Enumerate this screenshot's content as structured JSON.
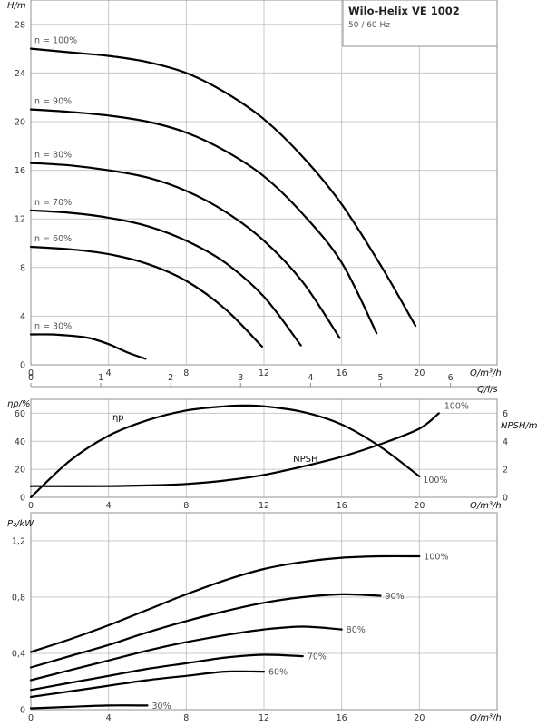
{
  "header": {
    "title": "Wilo-Helix VE 1002",
    "subtitle": "50 / 60 Hz"
  },
  "colors": {
    "curve": "#000000",
    "grid": "#c8c8c8",
    "frame": "#909090"
  },
  "chart_data": [
    {
      "id": "head",
      "type": "line",
      "ylabel": "H/m",
      "xlabel": "Q/m³/h",
      "xlabel2": "Q/l/s",
      "xlim": [
        0,
        24
      ],
      "ylim": [
        0,
        30
      ],
      "xticks": [
        0,
        4,
        8,
        12,
        16,
        20
      ],
      "yticks": [
        0,
        4,
        8,
        12,
        16,
        20,
        24,
        28
      ],
      "xticks2": [
        0,
        1,
        2,
        3,
        4,
        5,
        6
      ],
      "xticks2_unit_factor": 3.6,
      "series": [
        {
          "name": "n = 100%",
          "x": [
            0,
            2,
            4,
            6,
            8,
            10,
            12,
            14,
            16,
            18,
            19.8
          ],
          "y": [
            26.0,
            25.7,
            25.4,
            24.9,
            24.0,
            22.4,
            20.2,
            17.1,
            13.2,
            8.2,
            3.2
          ]
        },
        {
          "name": "n = 90%",
          "x": [
            0,
            2,
            4,
            6,
            8,
            10,
            12,
            14,
            16,
            17.8
          ],
          "y": [
            21.0,
            20.8,
            20.5,
            20.0,
            19.1,
            17.6,
            15.5,
            12.4,
            8.4,
            2.6
          ]
        },
        {
          "name": "n = 80%",
          "x": [
            0,
            2,
            4,
            6,
            8,
            10,
            12,
            14,
            15.9
          ],
          "y": [
            16.6,
            16.4,
            16.0,
            15.4,
            14.3,
            12.6,
            10.2,
            6.8,
            2.2
          ]
        },
        {
          "name": "n = 70%",
          "x": [
            0,
            2,
            4,
            6,
            8,
            10,
            12,
            13.9
          ],
          "y": [
            12.7,
            12.5,
            12.1,
            11.4,
            10.2,
            8.4,
            5.6,
            1.6
          ]
        },
        {
          "name": "n = 60%",
          "x": [
            0,
            2,
            4,
            6,
            8,
            10,
            11.9
          ],
          "y": [
            9.7,
            9.5,
            9.1,
            8.3,
            6.9,
            4.6,
            1.5
          ]
        },
        {
          "name": "n = 30%",
          "x": [
            0,
            1,
            2,
            3,
            4,
            5,
            5.9
          ],
          "y": [
            2.5,
            2.5,
            2.4,
            2.2,
            1.7,
            1.0,
            0.5
          ]
        }
      ]
    },
    {
      "id": "efficiency-npsh",
      "type": "line",
      "ylabel": "ηp/%",
      "ylabel_right": "NPSH/m",
      "xlabel": "Q/m³/h",
      "xlim": [
        0,
        24
      ],
      "ylim": [
        0,
        70
      ],
      "ylim_right": [
        0,
        7
      ],
      "xticks": [
        0,
        4,
        8,
        12,
        16,
        20
      ],
      "yticks": [
        0,
        20,
        40,
        60
      ],
      "yticks_right": [
        0,
        2,
        4,
        6
      ],
      "series": [
        {
          "name": "ηp",
          "end_label": "100%",
          "axis": "left",
          "x": [
            0,
            2,
            4,
            6,
            8,
            10,
            11,
            12,
            14,
            16,
            18,
            20
          ],
          "y": [
            0,
            26,
            44,
            55,
            62,
            65,
            65.5,
            65,
            61,
            52,
            36,
            15
          ]
        },
        {
          "name": "NPSH",
          "end_label": "100%",
          "axis": "right",
          "x": [
            0,
            4,
            6,
            8,
            10,
            12,
            14,
            16,
            18,
            20,
            21
          ],
          "y": [
            0.8,
            0.8,
            0.85,
            0.95,
            1.2,
            1.6,
            2.2,
            2.9,
            3.8,
            4.9,
            6.0
          ]
        }
      ]
    },
    {
      "id": "power",
      "type": "line",
      "ylabel": "P₂/kW",
      "xlabel": "Q/m³/h",
      "xlim": [
        0,
        24
      ],
      "ylim": [
        0,
        1.4
      ],
      "xticks": [
        0,
        4,
        8,
        12,
        16,
        20
      ],
      "yticks": [
        "0",
        "0,4",
        "0,8",
        "1,2"
      ],
      "ytick_values": [
        0,
        0.4,
        0.8,
        1.2
      ],
      "series": [
        {
          "name": "100%",
          "x": [
            0,
            2,
            4,
            6,
            8,
            10,
            12,
            14,
            16,
            18,
            20
          ],
          "y": [
            0.41,
            0.5,
            0.6,
            0.71,
            0.82,
            0.92,
            1.0,
            1.05,
            1.08,
            1.09,
            1.09
          ]
        },
        {
          "name": "90%",
          "x": [
            0,
            2,
            4,
            6,
            8,
            10,
            12,
            14,
            16,
            18
          ],
          "y": [
            0.3,
            0.38,
            0.46,
            0.55,
            0.63,
            0.7,
            0.76,
            0.8,
            0.82,
            0.81
          ]
        },
        {
          "name": "80%",
          "x": [
            0,
            2,
            4,
            6,
            8,
            10,
            12,
            14,
            16
          ],
          "y": [
            0.21,
            0.28,
            0.35,
            0.42,
            0.48,
            0.53,
            0.57,
            0.59,
            0.57
          ]
        },
        {
          "name": "70%",
          "x": [
            0,
            2,
            4,
            6,
            8,
            10,
            12,
            14
          ],
          "y": [
            0.14,
            0.19,
            0.24,
            0.29,
            0.33,
            0.37,
            0.39,
            0.38
          ]
        },
        {
          "name": "60%",
          "x": [
            0,
            2,
            4,
            6,
            8,
            10,
            12
          ],
          "y": [
            0.09,
            0.13,
            0.17,
            0.21,
            0.24,
            0.27,
            0.27
          ]
        },
        {
          "name": "30%",
          "x": [
            0,
            2,
            4,
            6
          ],
          "y": [
            0.01,
            0.02,
            0.03,
            0.03
          ]
        }
      ]
    }
  ]
}
